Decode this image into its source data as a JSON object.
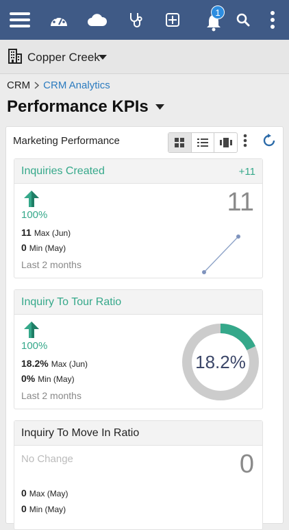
{
  "topbar": {
    "notification_count": "1",
    "colors": {
      "background": "#3f5a86",
      "badge": "#2d8de0"
    }
  },
  "location": {
    "name": "Copper Creek"
  },
  "breadcrumb": {
    "root": "CRM",
    "current": "CRM Analytics"
  },
  "page": {
    "title": "Performance KPIs"
  },
  "panel": {
    "title": "Marketing Performance"
  },
  "kpis": [
    {
      "title": "Inquiries Created",
      "delta": "+11",
      "trend_pct": "100%",
      "value": "11",
      "max_value": "11",
      "max_label": "Max (Jun)",
      "min_value": "0",
      "min_label": "Min (May)",
      "period": "Last 2 months",
      "sparkline": [
        0,
        11
      ]
    },
    {
      "title": "Inquiry To Tour Ratio",
      "trend_pct": "100%",
      "value": "18.2%",
      "gauge_fraction": 0.182,
      "max_value": "18.2%",
      "max_label": "Max (Jun)",
      "min_value": "0%",
      "min_label": "Min (May)",
      "period": "Last 2 months"
    },
    {
      "title": "Inquiry To Move In Ratio",
      "trend_text": "No Change",
      "value": "0",
      "max_value": "0",
      "max_label": "Max (May)",
      "min_value": "0",
      "min_label": "Min (May)"
    }
  ],
  "colors": {
    "accent_green": "#35a88a",
    "link_blue": "#2b7bbf",
    "gauge_track": "#cccccc"
  }
}
